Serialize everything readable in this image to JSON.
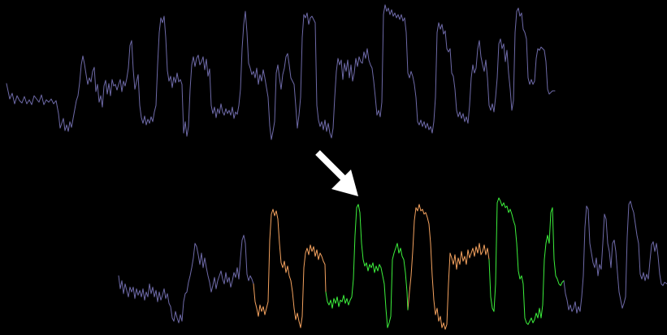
{
  "colors": {
    "background": "#000000",
    "reference_signal": "#6e6aa8",
    "signal": "#6e6aa8",
    "segment_orange": "#f4a25f",
    "segment_green": "#3cf03c",
    "arrow": "#ffffff"
  },
  "icons": {
    "pointer": "arrow-down-right-icon"
  }
}
